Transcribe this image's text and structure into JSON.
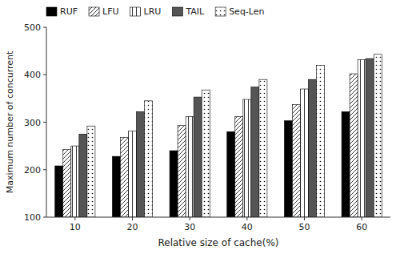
{
  "chart_data": {
    "type": "bar",
    "categories": [
      10,
      20,
      30,
      40,
      50,
      60
    ],
    "series": [
      {
        "name": "RUF",
        "color": "#000000",
        "values": [
          208,
          228,
          240,
          280,
          303,
          322
        ]
      },
      {
        "name": "LFU",
        "color": "#ffffff",
        "values": [
          243,
          268,
          293,
          312,
          337,
          402
        ]
      },
      {
        "name": "LRU",
        "color": "#ffffff",
        "values": [
          250,
          281,
          312,
          348,
          370,
          432
        ]
      },
      {
        "name": "TAIL",
        "color": "#555555",
        "values": [
          275,
          322,
          353,
          374,
          390,
          434
        ]
      },
      {
        "name": "Seq-Len",
        "color": "#ffffff",
        "values": [
          292,
          345,
          368,
          390,
          420,
          443
        ]
      }
    ],
    "xlabel": "Relative size of cache(%)",
    "ylabel": "Maximum number of concurrent",
    "ylim": [
      100,
      500
    ],
    "yticks": [
      100,
      200,
      300,
      400,
      500
    ],
    "grid": false,
    "legend": "upper left"
  }
}
